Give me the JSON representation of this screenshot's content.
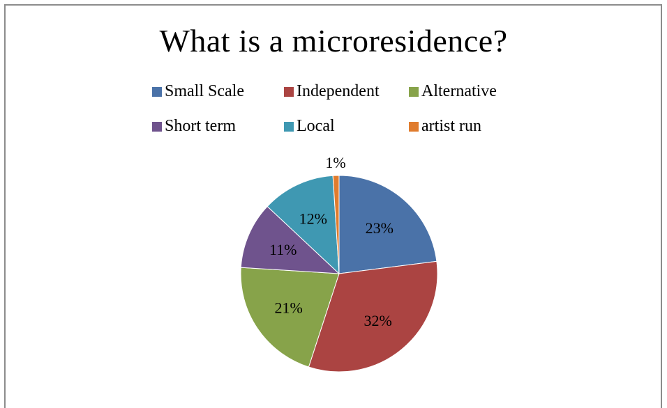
{
  "chart_data": {
    "type": "pie",
    "title": "What is a microresidence?",
    "categories": [
      "Small Scale",
      "Independent",
      "Alternative",
      "Short term",
      "Local",
      "artist run"
    ],
    "values": [
      23,
      32,
      21,
      11,
      12,
      1
    ],
    "labels": [
      "23%",
      "32%",
      "21%",
      "11%",
      "12%",
      "1%"
    ],
    "colors": [
      "#4a72a8",
      "#ab4442",
      "#87a34a",
      "#6f538d",
      "#3f98b2",
      "#e07c2e"
    ],
    "legend_position": "top"
  }
}
